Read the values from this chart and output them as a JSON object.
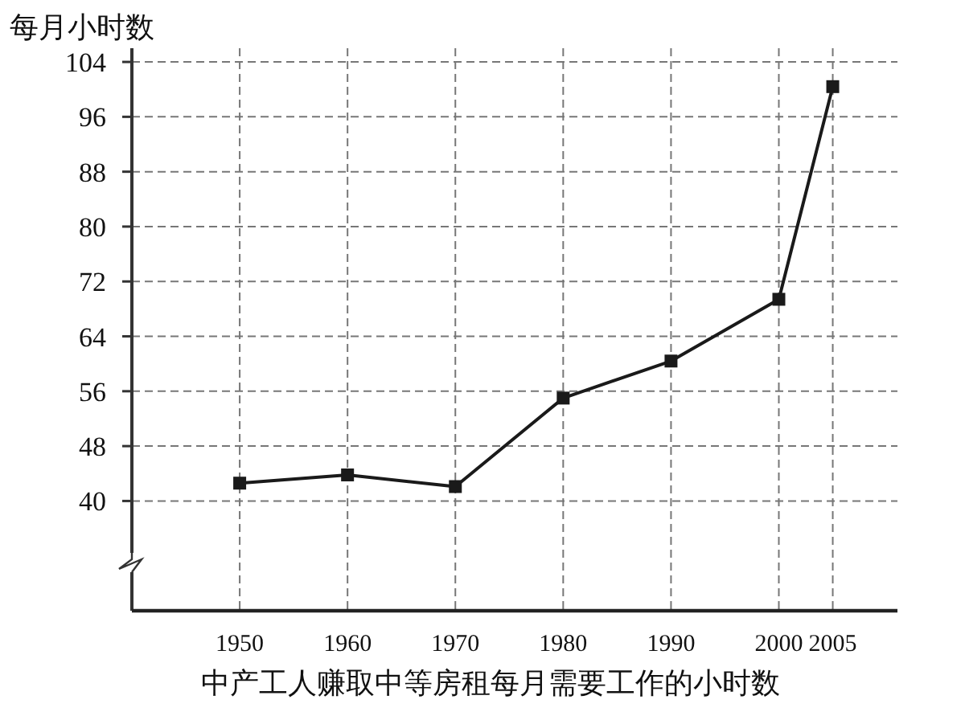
{
  "chart_data": {
    "type": "line",
    "ylabel": "每月小时数",
    "xlabel": "中产工人赚取中等房租每月需要工作的小时数",
    "x": [
      1950,
      1960,
      1970,
      1980,
      1990,
      2000,
      2005
    ],
    "series": [
      {
        "color": "#1a1a1a",
        "values": [
          42.6,
          43.8,
          42.1,
          55.0,
          60.4,
          69.4,
          100.4
        ]
      }
    ],
    "xlim": [
      1940,
      2011
    ],
    "ylim": [
      24,
      106
    ],
    "xticks": [
      1950,
      1960,
      1970,
      1980,
      1990,
      2000,
      2005
    ],
    "yticks": [
      40,
      48,
      56,
      64,
      72,
      80,
      88,
      96,
      104
    ],
    "grid": true,
    "marker": "square",
    "line_style": "solid"
  }
}
